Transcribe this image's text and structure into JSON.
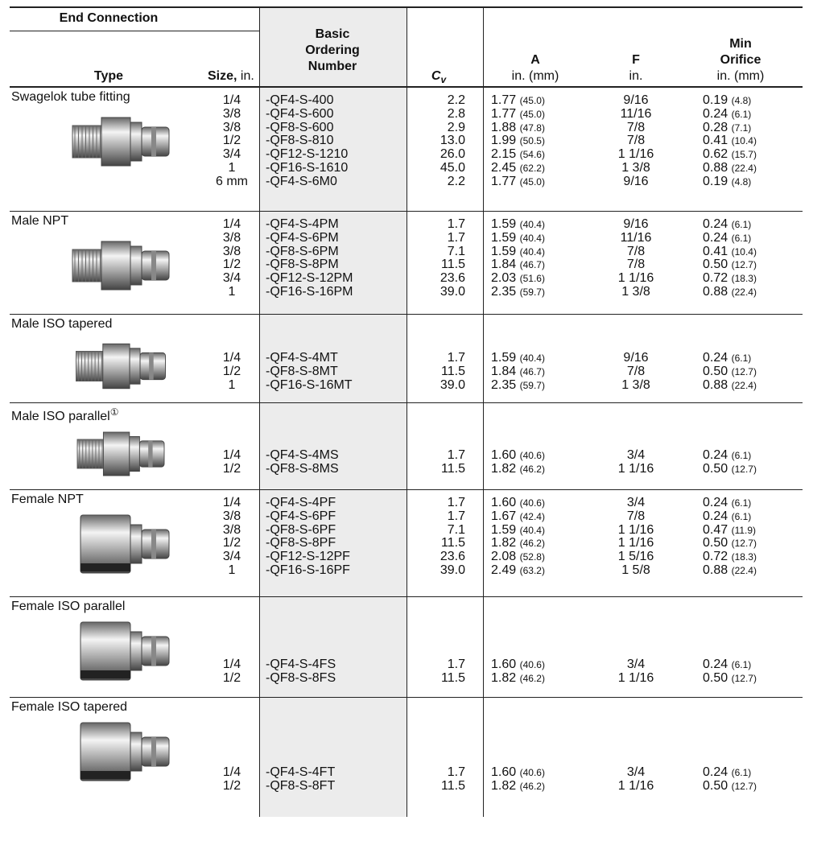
{
  "header": {
    "end_connection": "End Connection",
    "type": "Type",
    "size": "Size,",
    "size_unit": "in.",
    "ordering": [
      "Basic",
      "Ordering",
      "Number"
    ],
    "cv": {
      "symbol": "C",
      "subscript": "v"
    },
    "a": "A",
    "a_unit": "in. (mm)",
    "f": "F",
    "f_unit": "in.",
    "orifice": [
      "Min",
      "Orifice"
    ],
    "orifice_unit": "in. (mm)"
  },
  "groups": [
    {
      "type": "Swagelok tube fitting",
      "rows": [
        [
          "1/4",
          "-QF4-S-400",
          "2.2",
          "1.77",
          "(45.0)",
          "9/16",
          "0.19",
          "(4.8)"
        ],
        [
          "3/8",
          "-QF4-S-600",
          "2.8",
          "1.77",
          "(45.0)",
          "11/16",
          "0.24",
          "(6.1)"
        ],
        [
          "3/8",
          "-QF8-S-600",
          "2.9",
          "1.88",
          "(47.8)",
          "7/8",
          "0.28",
          "(7.1)"
        ],
        [
          "1/2",
          "-QF8-S-810",
          "13.0",
          "1.99",
          "(50.5)",
          "7/8",
          "0.41",
          "(10.4)"
        ],
        [
          "3/4",
          "-QF12-S-1210",
          "26.0",
          "2.15",
          "(54.6)",
          "1 1/16",
          "0.62",
          "(15.7)"
        ],
        [
          "1",
          "-QF16-S-1610",
          "45.0",
          "2.45",
          "(62.2)",
          "1 3/8",
          "0.88",
          "(22.4)"
        ],
        [
          "6 mm",
          "-QF4-S-6M0",
          "2.2",
          "1.77",
          "(45.0)",
          "9/16",
          "0.19",
          "(4.8)"
        ]
      ]
    },
    {
      "type": "Male NPT",
      "rows": [
        [
          "1/4",
          "-QF4-S-4PM",
          "1.7",
          "1.59",
          "(40.4)",
          "9/16",
          "0.24",
          "(6.1)"
        ],
        [
          "3/8",
          "-QF4-S-6PM",
          "1.7",
          "1.59",
          "(40.4)",
          "11/16",
          "0.24",
          "(6.1)"
        ],
        [
          "3/8",
          "-QF8-S-6PM",
          "7.1",
          "1.59",
          "(40.4)",
          "7/8",
          "0.41",
          "(10.4)"
        ],
        [
          "1/2",
          "-QF8-S-8PM",
          "11.5",
          "1.84",
          "(46.7)",
          "7/8",
          "0.50",
          "(12.7)"
        ],
        [
          "3/4",
          "-QF12-S-12PM",
          "23.6",
          "2.03",
          "(51.6)",
          "1 1/16",
          "0.72",
          "(18.3)"
        ],
        [
          "1",
          "-QF16-S-16PM",
          "39.0",
          "2.35",
          "(59.7)",
          "1 3/8",
          "0.88",
          "(22.4)"
        ]
      ]
    },
    {
      "type": "Male ISO tapered",
      "rows": [
        [
          "1/4",
          "-QF4-S-4MT",
          "1.7",
          "1.59",
          "(40.4)",
          "9/16",
          "0.24",
          "(6.1)"
        ],
        [
          "1/2",
          "-QF8-S-8MT",
          "11.5",
          "1.84",
          "(46.7)",
          "7/8",
          "0.50",
          "(12.7)"
        ],
        [
          "1",
          "-QF16-S-16MT",
          "39.0",
          "2.35",
          "(59.7)",
          "1 3/8",
          "0.88",
          "(22.4)"
        ]
      ]
    },
    {
      "type": "Male ISO parallel",
      "footnote_mark": "①",
      "rows": [
        [
          "1/4",
          "-QF4-S-4MS",
          "1.7",
          "1.60",
          "(40.6)",
          "3/4",
          "0.24",
          "(6.1)"
        ],
        [
          "1/2",
          "-QF8-S-8MS",
          "11.5",
          "1.82",
          "(46.2)",
          "1 1/16",
          "0.50",
          "(12.7)"
        ]
      ]
    },
    {
      "type": "Female NPT",
      "rows": [
        [
          "1/4",
          "-QF4-S-4PF",
          "1.7",
          "1.60",
          "(40.6)",
          "3/4",
          "0.24",
          "(6.1)"
        ],
        [
          "3/8",
          "-QF4-S-6PF",
          "1.7",
          "1.67",
          "(42.4)",
          "7/8",
          "0.24",
          "(6.1)"
        ],
        [
          "3/8",
          "-QF8-S-6PF",
          "7.1",
          "1.59",
          "(40.4)",
          "1 1/16",
          "0.47",
          "(11.9)"
        ],
        [
          "1/2",
          "-QF8-S-8PF",
          "11.5",
          "1.82",
          "(46.2)",
          "1 1/16",
          "0.50",
          "(12.7)"
        ],
        [
          "3/4",
          "-QF12-S-12PF",
          "23.6",
          "2.08",
          "(52.8)",
          "1 5/16",
          "0.72",
          "(18.3)"
        ],
        [
          "1",
          "-QF16-S-16PF",
          "39.0",
          "2.49",
          "(63.2)",
          "1 5/8",
          "0.88",
          "(22.4)"
        ]
      ]
    },
    {
      "type": "Female ISO parallel",
      "rows": [
        [
          "1/4",
          "-QF4-S-4FS",
          "1.7",
          "1.60",
          "(40.6)",
          "3/4",
          "0.24",
          "(6.1)"
        ],
        [
          "1/2",
          "-QF8-S-8FS",
          "11.5",
          "1.82",
          "(46.2)",
          "1 1/16",
          "0.50",
          "(12.7)"
        ]
      ]
    },
    {
      "type": "Female ISO tapered",
      "rows": [
        [
          "1/4",
          "-QF4-S-4FT",
          "1.7",
          "1.60",
          "(40.6)",
          "3/4",
          "0.24",
          "(6.1)"
        ],
        [
          "1/2",
          "-QF8-S-8FT",
          "11.5",
          "1.82",
          "(46.2)",
          "1 1/16",
          "0.50",
          "(12.7)"
        ]
      ]
    }
  ]
}
